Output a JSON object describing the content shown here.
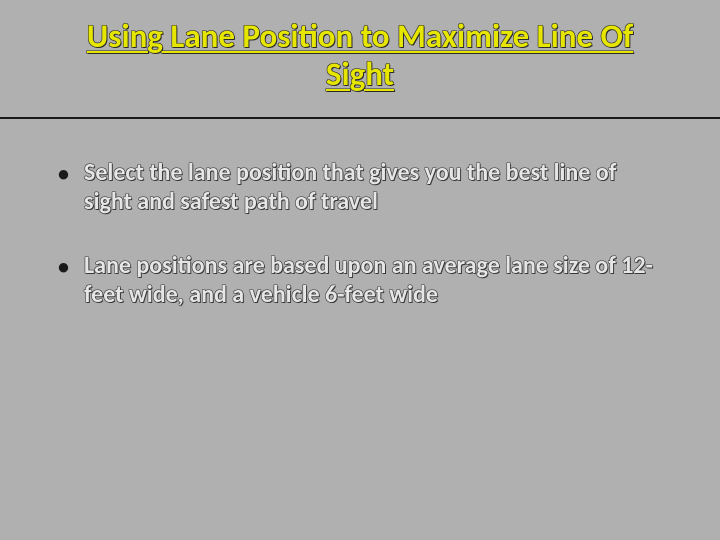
{
  "slide": {
    "title": "Using Lane Position to Maximize Line Of Sight",
    "title_color": "#e6e600",
    "title_fontsize": 33,
    "title_underline": true,
    "rule_color": "#1a1a1a",
    "background_color": "#b0b0b0",
    "bullets": [
      "Select the lane position that gives you the best line of sight and safest path of travel",
      "Lane positions are based upon an average lane size of 12-feet wide, and a vehicle 6-feet wide"
    ],
    "bullet_text_color": "#e6e6e6",
    "bullet_marker_color": "#1a1a1a",
    "bullet_fontsize": 24
  }
}
